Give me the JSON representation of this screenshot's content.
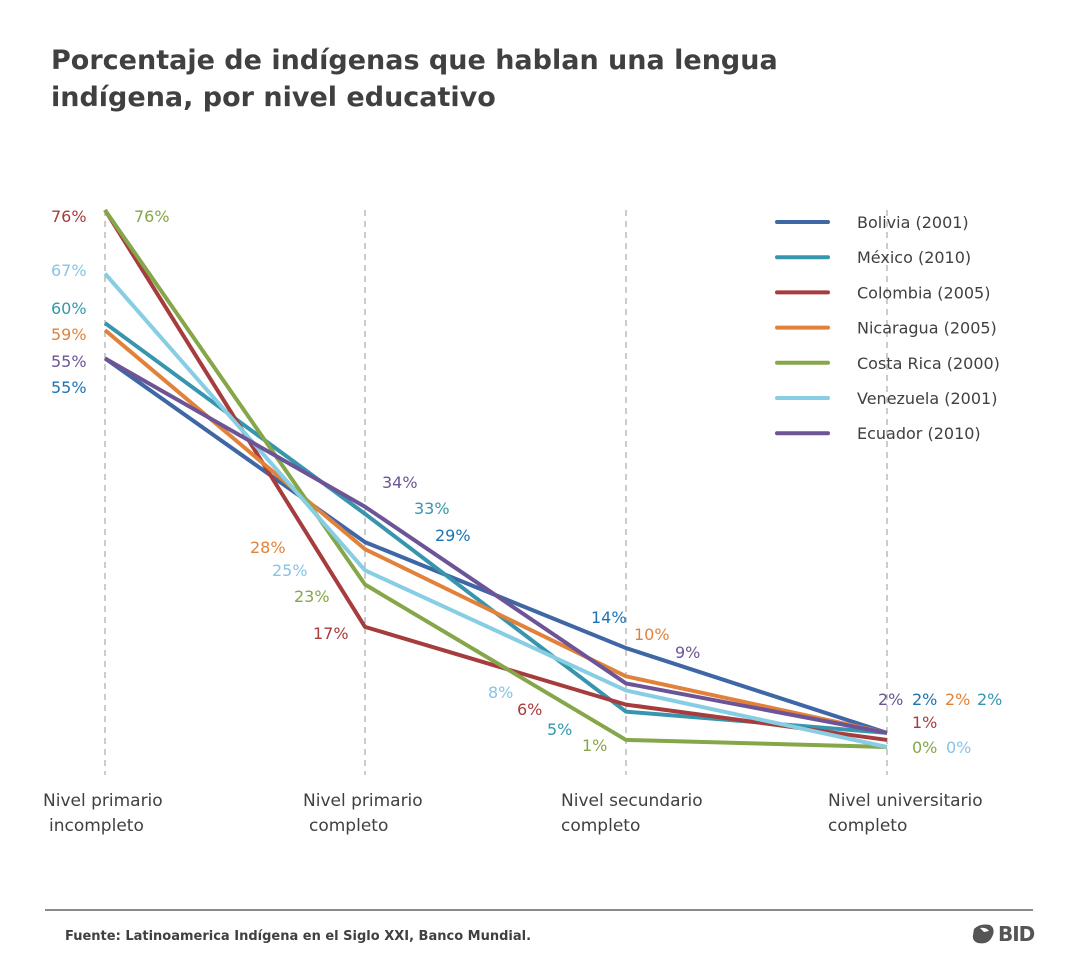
{
  "chart_data": {
    "type": "line",
    "title": "Porcentaje de indígenas que hablan una lengua indígena, por nivel educativo",
    "categories": [
      [
        "Nivel primario",
        "incompleto"
      ],
      [
        "Nivel primario",
        "completo"
      ],
      [
        "Nivel secundario",
        "completo"
      ],
      [
        "Nivel universitario",
        "completo"
      ]
    ],
    "ylim": [
      0,
      76
    ],
    "grid": false,
    "legend_position": "top-right",
    "value_suffix": "%",
    "series": [
      {
        "name": "Bolivia (2001)",
        "color": "#3f67a6",
        "label_color": "#1b74b6",
        "values": [
          55,
          29,
          14,
          2
        ]
      },
      {
        "name": "México (2010)",
        "color": "#3796ae",
        "label_color": "#3796ae",
        "values": [
          60,
          33,
          5,
          2
        ]
      },
      {
        "name": "Colombia (2005)",
        "color": "#a63c3d",
        "label_color": "#a63c3d",
        "values": [
          76,
          17,
          6,
          1
        ]
      },
      {
        "name": "Nicaragua (2005)",
        "color": "#e2823a",
        "label_color": "#e2823a",
        "values": [
          59,
          28,
          10,
          2
        ]
      },
      {
        "name": "Costa Rica (2000)",
        "color": "#86a64a",
        "label_color": "#86a64a",
        "values": [
          76,
          23,
          1,
          0
        ]
      },
      {
        "name": "Venezuela (2001)",
        "color": "#87cde3",
        "label_color": "#87c4e6",
        "values": [
          67,
          25,
          8,
          0
        ]
      },
      {
        "name": "Ecuador (2010)",
        "color": "#6c5496",
        "label_color": "#6c5496",
        "values": [
          55,
          34,
          9,
          2
        ]
      }
    ]
  },
  "footer": {
    "source": "Fuente: Latinoamerica Indígena en el Siglo XXI, Banco Mundial.",
    "logo": "BID"
  }
}
